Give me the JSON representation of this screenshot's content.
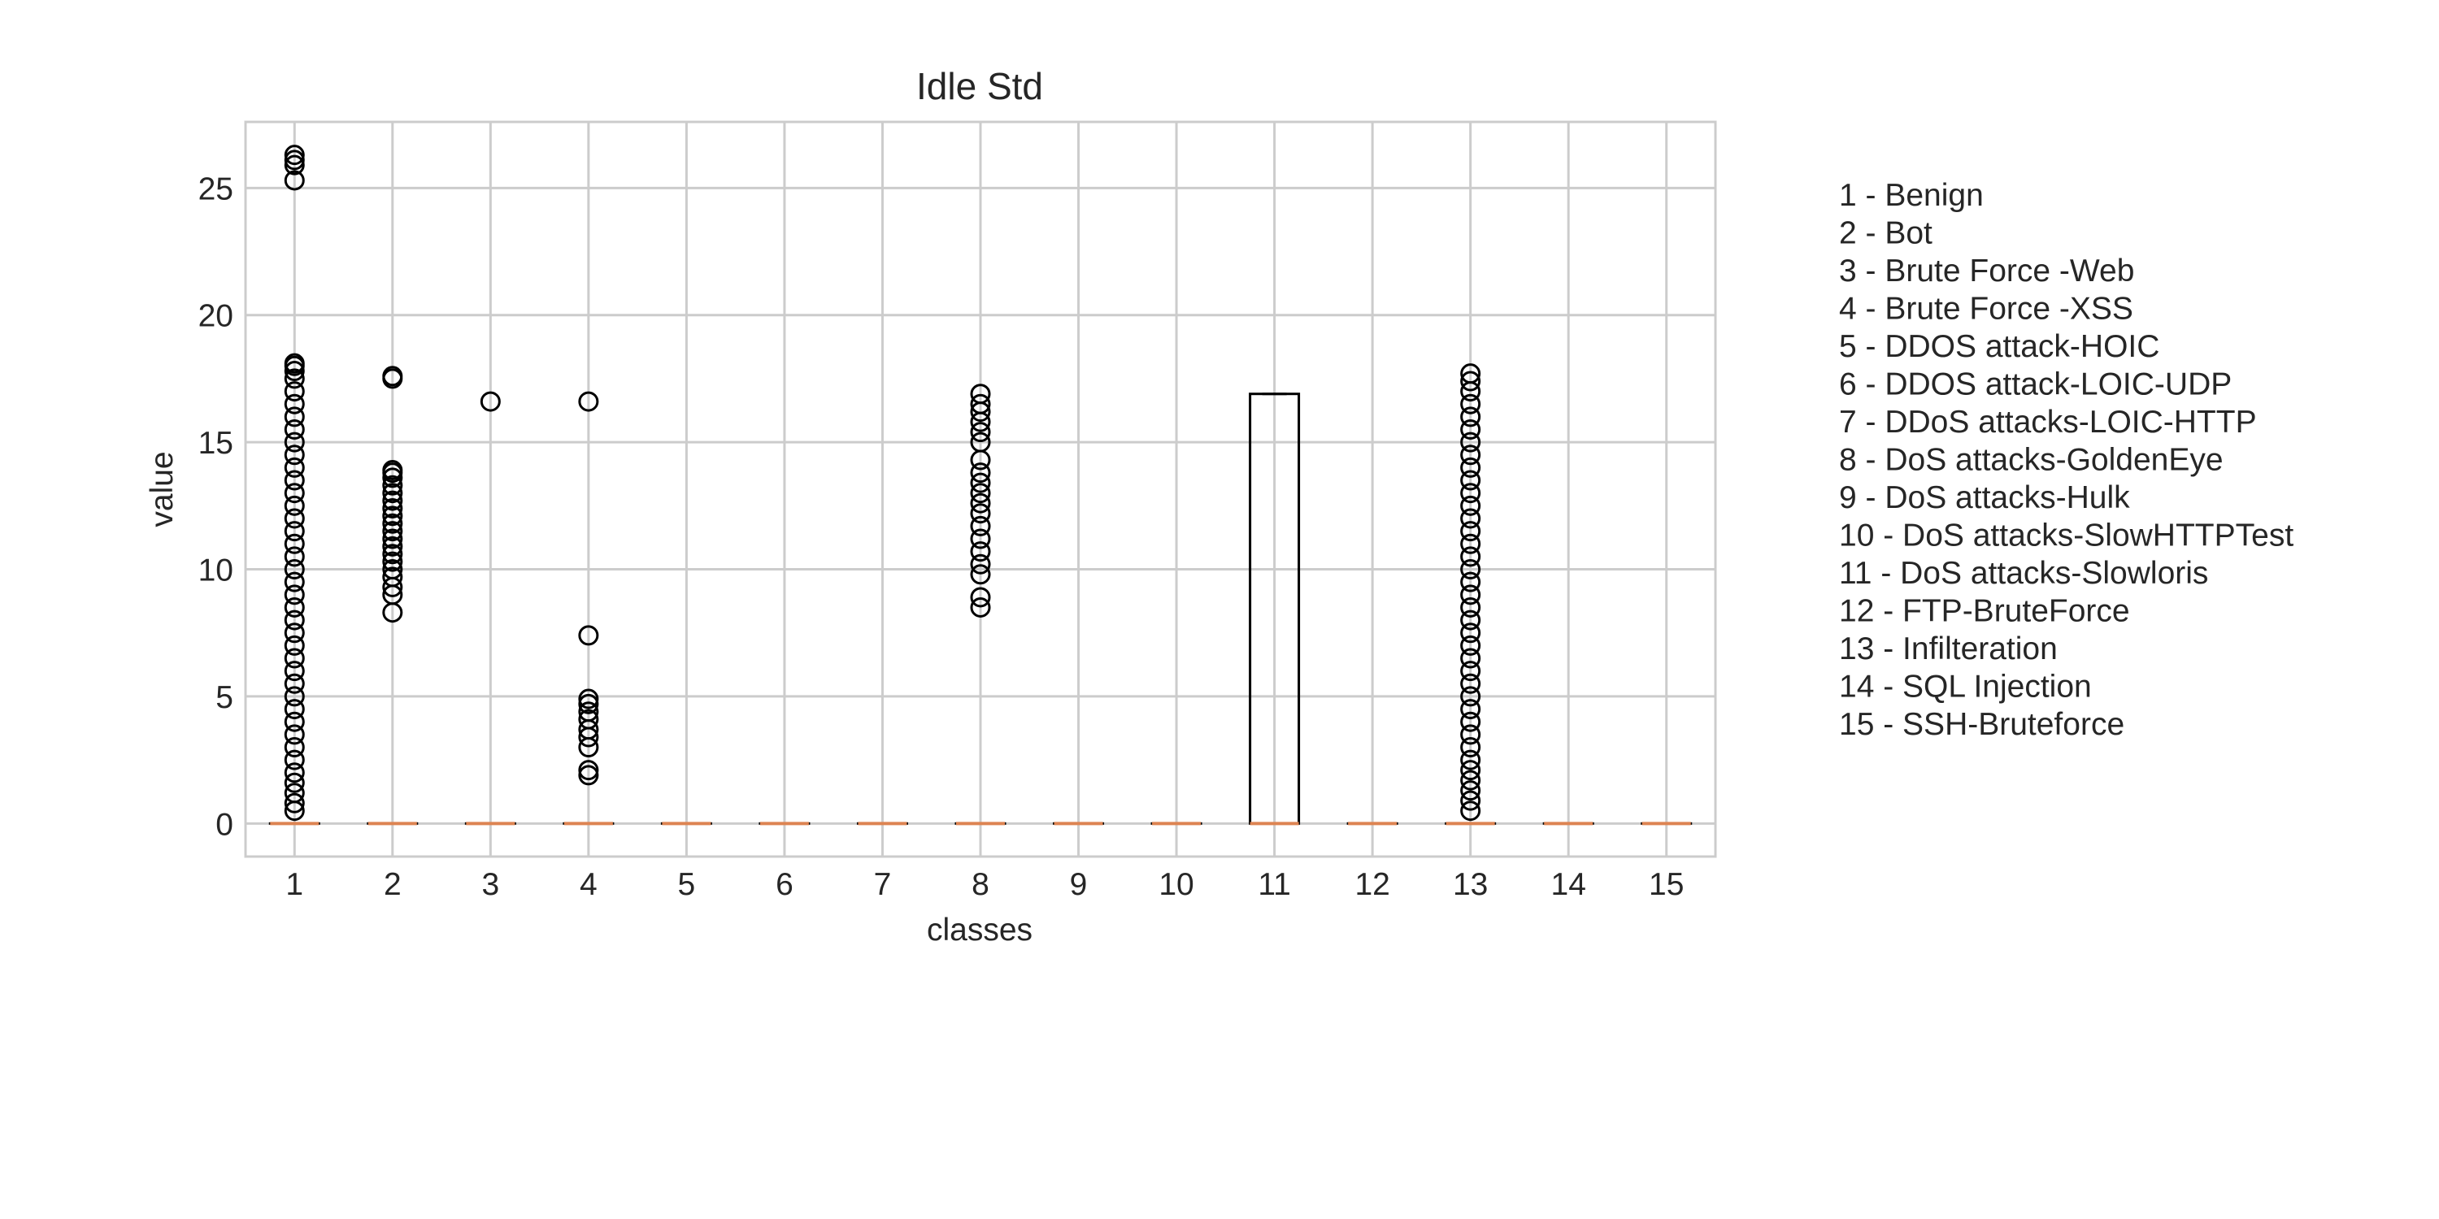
{
  "chart_data": {
    "type": "box",
    "title": "Idle Std",
    "xlabel": "classes",
    "ylabel": "value",
    "ylim": [
      -1.3,
      27.6
    ],
    "yticks": [
      0,
      5,
      10,
      15,
      20,
      25
    ],
    "categories": [
      "1",
      "2",
      "3",
      "4",
      "5",
      "6",
      "7",
      "8",
      "9",
      "10",
      "11",
      "12",
      "13",
      "14",
      "15"
    ],
    "grid": true,
    "legend_position": "right",
    "legend": [
      "1 - Benign",
      "2 - Bot",
      "3 - Brute Force -Web",
      "4 - Brute Force -XSS",
      "5 - DDOS attack-HOIC",
      "6 - DDOS attack-LOIC-UDP",
      "7 - DDoS attacks-LOIC-HTTP",
      "8 - DoS attacks-GoldenEye",
      "9 - DoS attacks-Hulk",
      "10 - DoS attacks-SlowHTTPTest",
      "11 - DoS attacks-Slowloris",
      "12 - FTP-BruteForce",
      "13 - Infilteration",
      "14 - SQL Injection",
      "15 - SSH-Bruteforce"
    ],
    "boxes": [
      {
        "category": "1",
        "q1": 0,
        "median": 0,
        "q3": 0,
        "whisker_low": 0,
        "whisker_high": 0,
        "outliers": [
          0.5,
          0.8,
          1.2,
          1.6,
          2.0,
          2.5,
          3.0,
          3.5,
          4.0,
          4.5,
          5.0,
          5.5,
          6.0,
          6.5,
          7.0,
          7.5,
          8.0,
          8.5,
          9.0,
          9.5,
          10.0,
          10.5,
          11.0,
          11.5,
          12.0,
          12.5,
          13.0,
          13.5,
          14.0,
          14.5,
          15.0,
          15.5,
          16.0,
          16.5,
          17.0,
          17.5,
          17.8,
          18.0,
          18.1,
          25.3,
          25.9,
          26.1,
          26.3
        ]
      },
      {
        "category": "2",
        "q1": 0,
        "median": 0,
        "q3": 0,
        "whisker_low": 0,
        "whisker_high": 0,
        "outliers": [
          8.3,
          9.0,
          9.3,
          9.7,
          10.0,
          10.3,
          10.6,
          10.9,
          11.2,
          11.5,
          11.8,
          12.1,
          12.4,
          12.7,
          13.0,
          13.3,
          13.6,
          13.8,
          13.9,
          17.5,
          17.6
        ]
      },
      {
        "category": "3",
        "q1": 0,
        "median": 0,
        "q3": 0,
        "whisker_low": 0,
        "whisker_high": 0,
        "outliers": [
          16.6
        ]
      },
      {
        "category": "4",
        "q1": 0,
        "median": 0,
        "q3": 0,
        "whisker_low": 0,
        "whisker_high": 0,
        "outliers": [
          1.9,
          2.1,
          3.0,
          3.4,
          3.7,
          4.1,
          4.4,
          4.7,
          4.9,
          7.4,
          16.6
        ]
      },
      {
        "category": "5",
        "q1": 0,
        "median": 0,
        "q3": 0,
        "whisker_low": 0,
        "whisker_high": 0,
        "outliers": []
      },
      {
        "category": "6",
        "q1": 0,
        "median": 0,
        "q3": 0,
        "whisker_low": 0,
        "whisker_high": 0,
        "outliers": []
      },
      {
        "category": "7",
        "q1": 0,
        "median": 0,
        "q3": 0,
        "whisker_low": 0,
        "whisker_high": 0,
        "outliers": []
      },
      {
        "category": "8",
        "q1": 0,
        "median": 0,
        "q3": 0,
        "whisker_low": 0,
        "whisker_high": 0,
        "outliers": [
          8.5,
          8.9,
          9.8,
          10.2,
          10.7,
          11.2,
          11.7,
          12.2,
          12.6,
          13.0,
          13.4,
          13.8,
          14.3,
          15.0,
          15.4,
          15.8,
          16.2,
          16.5,
          16.9
        ]
      },
      {
        "category": "9",
        "q1": 0,
        "median": 0,
        "q3": 0,
        "whisker_low": 0,
        "whisker_high": 0,
        "outliers": []
      },
      {
        "category": "10",
        "q1": 0,
        "median": 0,
        "q3": 0,
        "whisker_low": 0,
        "whisker_high": 0,
        "outliers": []
      },
      {
        "category": "11",
        "q1": 0,
        "median": 0,
        "q3": 16.9,
        "whisker_low": 0,
        "whisker_high": 16.9,
        "outliers": []
      },
      {
        "category": "12",
        "q1": 0,
        "median": 0,
        "q3": 0,
        "whisker_low": 0,
        "whisker_high": 0,
        "outliers": []
      },
      {
        "category": "13",
        "q1": 0,
        "median": 0,
        "q3": 0,
        "whisker_low": 0,
        "whisker_high": 0,
        "outliers": [
          0.5,
          0.9,
          1.3,
          1.7,
          2.1,
          2.5,
          3.0,
          3.5,
          4.0,
          4.5,
          5.0,
          5.5,
          6.0,
          6.5,
          7.0,
          7.5,
          8.0,
          8.5,
          9.0,
          9.5,
          10.0,
          10.5,
          11.0,
          11.5,
          12.0,
          12.5,
          13.0,
          13.5,
          14.0,
          14.5,
          15.0,
          15.5,
          16.0,
          16.5,
          17.0,
          17.4,
          17.7
        ]
      },
      {
        "category": "14",
        "q1": 0,
        "median": 0,
        "q3": 0,
        "whisker_low": 0,
        "whisker_high": 0,
        "outliers": []
      },
      {
        "category": "15",
        "q1": 0,
        "median": 0,
        "q3": 0,
        "whisker_low": 0,
        "whisker_high": 0,
        "outliers": []
      }
    ],
    "colors": {
      "median": "#dd8452",
      "box_edge": "#000000",
      "grid": "#cccccc",
      "frame": "#cccccc",
      "text": "#262626"
    }
  }
}
